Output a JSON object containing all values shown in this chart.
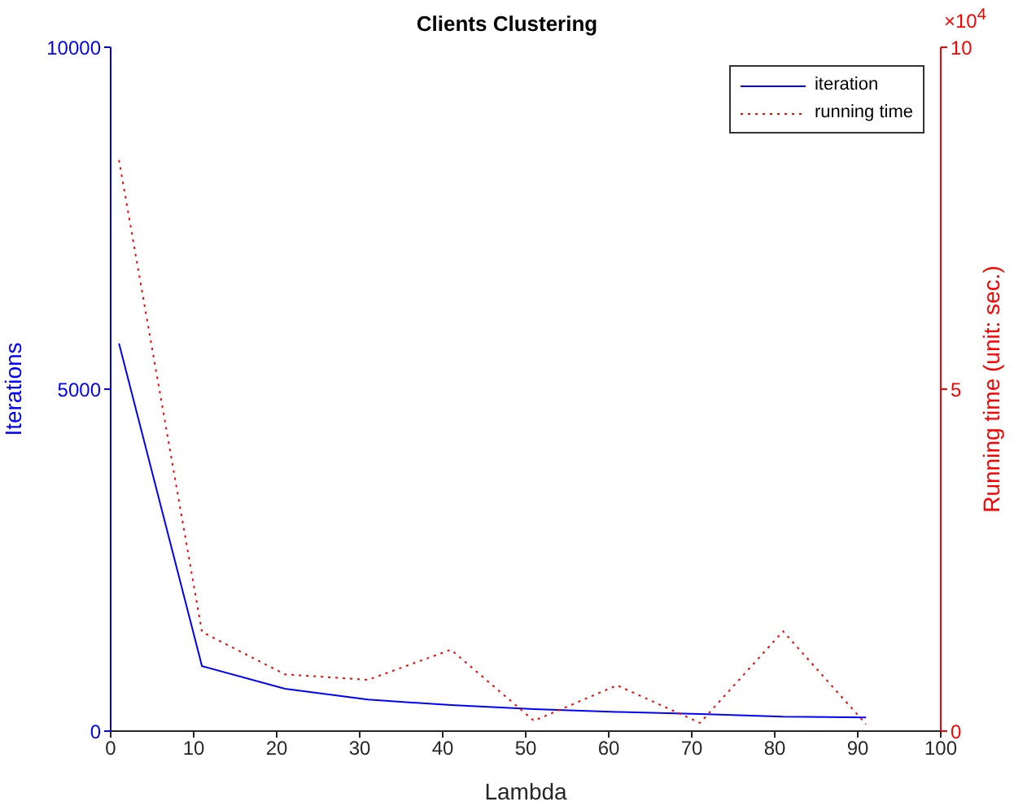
{
  "chart_data": {
    "type": "line",
    "title": "Clients Clustering",
    "xlabel": "Lambda",
    "ylabel": "Iterations",
    "y2label": "Running time (unit: sec.)",
    "x": [
      1,
      11,
      21,
      31,
      41,
      51,
      61,
      71,
      81,
      91
    ],
    "series": [
      {
        "name": "iteration",
        "color": "#0000ff",
        "line_style": "solid",
        "values": [
          5670,
          950,
          620,
          460,
          380,
          320,
          280,
          250,
          210,
          200
        ]
      },
      {
        "name": "running time",
        "color": "#ff0000",
        "line_style": "dotted",
        "axis": "y2",
        "values": [
          8.35,
          1.45,
          0.83,
          0.75,
          1.19,
          0.15,
          0.67,
          0.12,
          1.46,
          0.1
        ]
      }
    ],
    "xlim": [
      0,
      100
    ],
    "xticks": [
      0,
      10,
      20,
      30,
      40,
      50,
      60,
      70,
      80,
      90,
      100
    ],
    "ylim": [
      0,
      10000
    ],
    "yticks": [
      0,
      5000,
      10000
    ],
    "y2lim": [
      0,
      10
    ],
    "y2ticks": [
      0,
      5,
      10
    ],
    "annotations": [
      "×10$^{4}$"
    ],
    "legend": "top right",
    "marker": "none",
    "grid": false
  }
}
